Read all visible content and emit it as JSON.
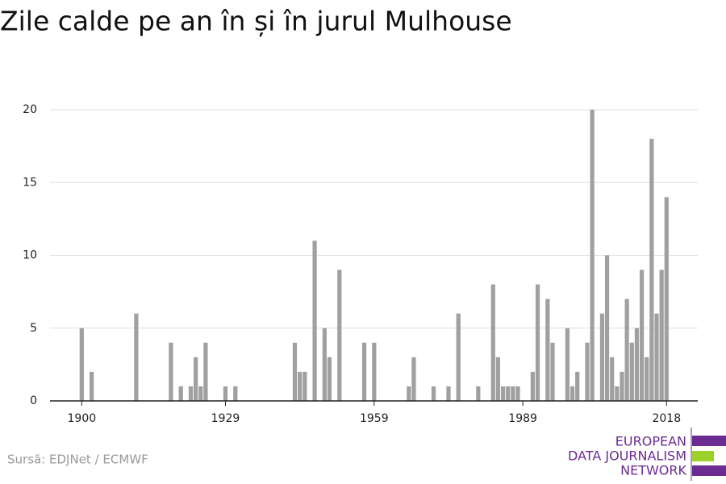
{
  "chart_data": {
    "type": "bar",
    "title": "Zile calde pe an în și în jurul Mulhouse",
    "source": "Sursă: EDJNet / ECMWF",
    "logo": [
      "EUROPEAN",
      "DATA JOURNALISM",
      "NETWORK"
    ],
    "color": "#a0a0a0",
    "x": [
      1900,
      1902,
      1911,
      1918,
      1920,
      1922,
      1923,
      1924,
      1925,
      1929,
      1931,
      1943,
      1944,
      1945,
      1947,
      1949,
      1950,
      1952,
      1957,
      1959,
      1966,
      1967,
      1971,
      1974,
      1976,
      1980,
      1983,
      1984,
      1985,
      1986,
      1987,
      1988,
      1991,
      1992,
      1994,
      1995,
      1998,
      1999,
      2000,
      2002,
      2003,
      2005,
      2006,
      2007,
      2008,
      2009,
      2010,
      2011,
      2012,
      2013,
      2014,
      2015,
      2016,
      2017,
      2018
    ],
    "values": [
      5,
      2,
      6,
      4,
      1,
      1,
      3,
      1,
      4,
      1,
      1,
      4,
      2,
      2,
      11,
      5,
      3,
      9,
      4,
      4,
      1,
      3,
      1,
      1,
      6,
      1,
      8,
      3,
      1,
      1,
      1,
      1,
      2,
      8,
      7,
      4,
      5,
      1,
      2,
      4,
      20,
      6,
      10,
      3,
      1,
      2,
      7,
      4,
      5,
      9,
      3,
      18,
      6,
      9,
      14
    ],
    "xlim": [
      1893.6,
      2024.3
    ],
    "xticks": [
      1900,
      1929,
      1959,
      1989,
      2018
    ],
    "ylim": [
      0,
      20
    ],
    "yticks": [
      0,
      5,
      10,
      15,
      20
    ],
    "grid": true
  }
}
